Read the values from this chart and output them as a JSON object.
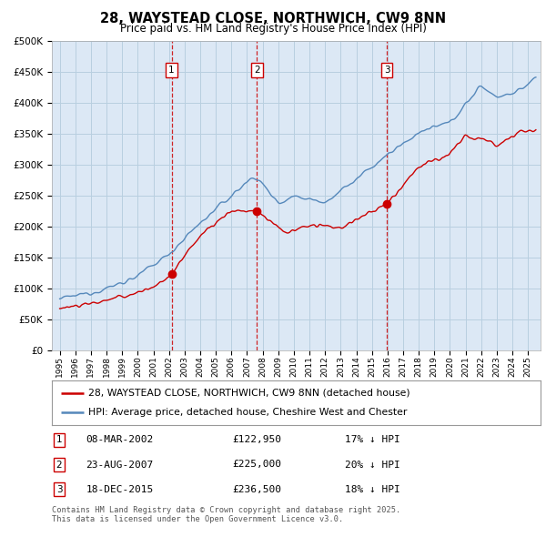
{
  "title": "28, WAYSTEAD CLOSE, NORTHWICH, CW9 8NN",
  "subtitle": "Price paid vs. HM Land Registry's House Price Index (HPI)",
  "title_fontsize": 10.5,
  "subtitle_fontsize": 9,
  "background_color": "#ffffff",
  "plot_bg_color": "#dce8f5",
  "grid_color": "#b8cfe0",
  "red_color": "#cc0000",
  "blue_color": "#5588bb",
  "legend_label_red": "28, WAYSTEAD CLOSE, NORTHWICH, CW9 8NN (detached house)",
  "legend_label_blue": "HPI: Average price, detached house, Cheshire West and Chester",
  "sale_year_floats": [
    2002.17,
    2007.64,
    2015.96
  ],
  "sale_prices": [
    122950,
    225000,
    236500
  ],
  "sale_labels": [
    "1",
    "2",
    "3"
  ],
  "table_data": [
    [
      "1",
      "08-MAR-2002",
      "£122,950",
      "17% ↓ HPI"
    ],
    [
      "2",
      "23-AUG-2007",
      "£225,000",
      "20% ↓ HPI"
    ],
    [
      "3",
      "18-DEC-2015",
      "£236,500",
      "18% ↓ HPI"
    ]
  ],
  "footer_text": "Contains HM Land Registry data © Crown copyright and database right 2025.\nThis data is licensed under the Open Government Licence v3.0.",
  "ylim": [
    0,
    500000
  ],
  "yticks": [
    0,
    50000,
    100000,
    150000,
    200000,
    250000,
    300000,
    350000,
    400000,
    450000,
    500000
  ],
  "vline_color": "#cc0000",
  "vline_style": "--",
  "xmin": 1994.5,
  "xmax": 2025.8
}
